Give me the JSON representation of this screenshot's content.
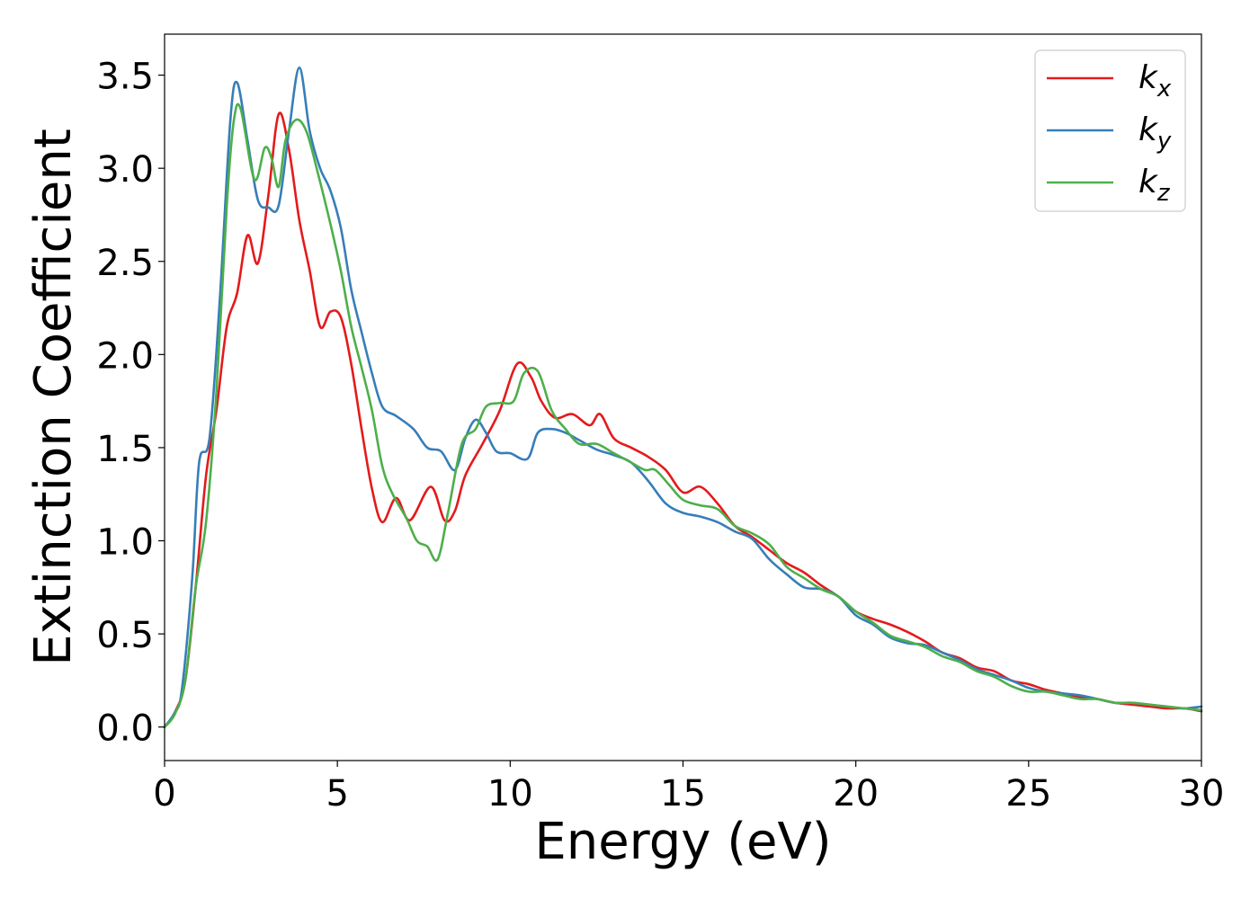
{
  "chart_data": {
    "type": "line",
    "xlabel": "Energy (eV)",
    "ylabel": "Extinction Coefficient",
    "xlim": [
      0,
      30
    ],
    "ylim": [
      -0.18,
      3.72
    ],
    "xticks": [
      0,
      5,
      10,
      15,
      20,
      25,
      30
    ],
    "yticks": [
      0.0,
      0.5,
      1.0,
      1.5,
      2.0,
      2.5,
      3.0,
      3.5
    ],
    "xtick_labels": [
      "0",
      "5",
      "10",
      "15",
      "20",
      "25",
      "30"
    ],
    "ytick_labels": [
      "0.0",
      "0.5",
      "1.0",
      "1.5",
      "2.0",
      "2.5",
      "3.0",
      "3.5"
    ],
    "grid": false,
    "legend_position": "top-right",
    "series": [
      {
        "name": "k_x",
        "label_main": "k",
        "label_sub": "x",
        "color": "#e41a1c",
        "points": [
          [
            0,
            0
          ],
          [
            0.3,
            0.08
          ],
          [
            0.6,
            0.25
          ],
          [
            0.9,
            0.75
          ],
          [
            1.2,
            1.35
          ],
          [
            1.5,
            1.7
          ],
          [
            1.8,
            2.15
          ],
          [
            2.1,
            2.33
          ],
          [
            2.4,
            2.64
          ],
          [
            2.7,
            2.49
          ],
          [
            3.0,
            2.85
          ],
          [
            3.3,
            3.29
          ],
          [
            3.6,
            3.1
          ],
          [
            3.9,
            2.72
          ],
          [
            4.2,
            2.45
          ],
          [
            4.5,
            2.15
          ],
          [
            4.8,
            2.23
          ],
          [
            5.1,
            2.2
          ],
          [
            5.4,
            1.95
          ],
          [
            5.7,
            1.6
          ],
          [
            6.0,
            1.28
          ],
          [
            6.3,
            1.1
          ],
          [
            6.7,
            1.23
          ],
          [
            7.1,
            1.11
          ],
          [
            7.7,
            1.29
          ],
          [
            8.1,
            1.11
          ],
          [
            8.4,
            1.16
          ],
          [
            8.7,
            1.35
          ],
          [
            9.2,
            1.52
          ],
          [
            9.7,
            1.7
          ],
          [
            10.2,
            1.95
          ],
          [
            10.6,
            1.88
          ],
          [
            10.9,
            1.75
          ],
          [
            11.3,
            1.66
          ],
          [
            11.8,
            1.68
          ],
          [
            12.3,
            1.62
          ],
          [
            12.6,
            1.68
          ],
          [
            13.0,
            1.55
          ],
          [
            13.5,
            1.5
          ],
          [
            14.0,
            1.45
          ],
          [
            14.5,
            1.38
          ],
          [
            15.0,
            1.26
          ],
          [
            15.5,
            1.29
          ],
          [
            16.0,
            1.2
          ],
          [
            16.5,
            1.08
          ],
          [
            17.0,
            1.02
          ],
          [
            17.5,
            0.95
          ],
          [
            18.0,
            0.88
          ],
          [
            18.5,
            0.83
          ],
          [
            19.0,
            0.76
          ],
          [
            19.5,
            0.7
          ],
          [
            20.0,
            0.62
          ],
          [
            20.5,
            0.58
          ],
          [
            21.0,
            0.55
          ],
          [
            21.5,
            0.51
          ],
          [
            22.0,
            0.46
          ],
          [
            22.5,
            0.4
          ],
          [
            23.0,
            0.37
          ],
          [
            23.5,
            0.32
          ],
          [
            24.0,
            0.3
          ],
          [
            24.5,
            0.25
          ],
          [
            25.0,
            0.23
          ],
          [
            25.5,
            0.2
          ],
          [
            26.0,
            0.18
          ],
          [
            26.5,
            0.16
          ],
          [
            27.0,
            0.15
          ],
          [
            27.5,
            0.13
          ],
          [
            28.0,
            0.12
          ],
          [
            28.5,
            0.11
          ],
          [
            29.0,
            0.1
          ],
          [
            29.5,
            0.1
          ],
          [
            30.0,
            0.085
          ]
        ]
      },
      {
        "name": "k_y",
        "label_main": "k",
        "label_sub": "y",
        "color": "#377eb8",
        "points": [
          [
            0,
            0
          ],
          [
            0.3,
            0.08
          ],
          [
            0.5,
            0.2
          ],
          [
            0.8,
            0.8
          ],
          [
            1.0,
            1.42
          ],
          [
            1.3,
            1.55
          ],
          [
            1.6,
            2.3
          ],
          [
            1.9,
            3.25
          ],
          [
            2.1,
            3.46
          ],
          [
            2.4,
            3.15
          ],
          [
            2.7,
            2.83
          ],
          [
            3.0,
            2.79
          ],
          [
            3.3,
            2.8
          ],
          [
            3.6,
            3.2
          ],
          [
            3.9,
            3.54
          ],
          [
            4.2,
            3.2
          ],
          [
            4.5,
            3.0
          ],
          [
            4.8,
            2.88
          ],
          [
            5.1,
            2.68
          ],
          [
            5.4,
            2.35
          ],
          [
            5.7,
            2.12
          ],
          [
            6.0,
            1.9
          ],
          [
            6.3,
            1.72
          ],
          [
            6.7,
            1.67
          ],
          [
            7.2,
            1.6
          ],
          [
            7.6,
            1.5
          ],
          [
            8.0,
            1.48
          ],
          [
            8.4,
            1.38
          ],
          [
            8.7,
            1.55
          ],
          [
            9.0,
            1.65
          ],
          [
            9.3,
            1.58
          ],
          [
            9.6,
            1.48
          ],
          [
            10.0,
            1.47
          ],
          [
            10.5,
            1.44
          ],
          [
            10.8,
            1.58
          ],
          [
            11.2,
            1.6
          ],
          [
            11.6,
            1.58
          ],
          [
            12.0,
            1.54
          ],
          [
            12.5,
            1.49
          ],
          [
            13.0,
            1.46
          ],
          [
            13.5,
            1.42
          ],
          [
            14.0,
            1.32
          ],
          [
            14.5,
            1.2
          ],
          [
            15.0,
            1.15
          ],
          [
            15.5,
            1.13
          ],
          [
            16.0,
            1.1
          ],
          [
            16.5,
            1.05
          ],
          [
            17.0,
            1.01
          ],
          [
            17.5,
            0.9
          ],
          [
            18.0,
            0.82
          ],
          [
            18.5,
            0.75
          ],
          [
            19.0,
            0.74
          ],
          [
            19.5,
            0.7
          ],
          [
            20.0,
            0.6
          ],
          [
            20.5,
            0.55
          ],
          [
            21.0,
            0.48
          ],
          [
            21.5,
            0.45
          ],
          [
            22.0,
            0.44
          ],
          [
            22.5,
            0.4
          ],
          [
            23.0,
            0.36
          ],
          [
            23.5,
            0.31
          ],
          [
            24.0,
            0.28
          ],
          [
            24.5,
            0.25
          ],
          [
            25.0,
            0.21
          ],
          [
            25.5,
            0.19
          ],
          [
            26.0,
            0.18
          ],
          [
            26.5,
            0.17
          ],
          [
            27.0,
            0.15
          ],
          [
            27.5,
            0.13
          ],
          [
            28.0,
            0.13
          ],
          [
            28.5,
            0.12
          ],
          [
            29.0,
            0.11
          ],
          [
            29.5,
            0.1
          ],
          [
            30.0,
            0.11
          ]
        ]
      },
      {
        "name": "k_z",
        "label_main": "k",
        "label_sub": "z",
        "color": "#4daf4a",
        "points": [
          [
            0,
            0
          ],
          [
            0.3,
            0.07
          ],
          [
            0.6,
            0.25
          ],
          [
            0.9,
            0.75
          ],
          [
            1.2,
            1.1
          ],
          [
            1.5,
            1.8
          ],
          [
            1.8,
            2.8
          ],
          [
            2.0,
            3.25
          ],
          [
            2.2,
            3.32
          ],
          [
            2.6,
            2.94
          ],
          [
            2.9,
            3.11
          ],
          [
            3.1,
            3.05
          ],
          [
            3.3,
            2.9
          ],
          [
            3.5,
            3.15
          ],
          [
            3.8,
            3.26
          ],
          [
            4.1,
            3.2
          ],
          [
            4.4,
            3.0
          ],
          [
            4.8,
            2.7
          ],
          [
            5.1,
            2.45
          ],
          [
            5.4,
            2.15
          ],
          [
            5.7,
            1.93
          ],
          [
            6.0,
            1.7
          ],
          [
            6.3,
            1.4
          ],
          [
            6.6,
            1.25
          ],
          [
            7.0,
            1.12
          ],
          [
            7.3,
            1.0
          ],
          [
            7.6,
            0.97
          ],
          [
            7.9,
            0.9
          ],
          [
            8.2,
            1.15
          ],
          [
            8.6,
            1.52
          ],
          [
            9.0,
            1.6
          ],
          [
            9.3,
            1.72
          ],
          [
            9.7,
            1.74
          ],
          [
            10.1,
            1.75
          ],
          [
            10.4,
            1.9
          ],
          [
            10.8,
            1.91
          ],
          [
            11.2,
            1.7
          ],
          [
            11.6,
            1.6
          ],
          [
            12.0,
            1.52
          ],
          [
            12.5,
            1.52
          ],
          [
            13.0,
            1.47
          ],
          [
            13.5,
            1.42
          ],
          [
            13.9,
            1.38
          ],
          [
            14.2,
            1.38
          ],
          [
            14.6,
            1.3
          ],
          [
            15.0,
            1.22
          ],
          [
            15.5,
            1.19
          ],
          [
            16.0,
            1.17
          ],
          [
            16.5,
            1.08
          ],
          [
            17.0,
            1.04
          ],
          [
            17.5,
            0.98
          ],
          [
            18.0,
            0.86
          ],
          [
            18.5,
            0.8
          ],
          [
            19.0,
            0.74
          ],
          [
            19.5,
            0.7
          ],
          [
            20.0,
            0.62
          ],
          [
            20.5,
            0.56
          ],
          [
            21.0,
            0.49
          ],
          [
            21.5,
            0.46
          ],
          [
            22.0,
            0.43
          ],
          [
            22.5,
            0.38
          ],
          [
            23.0,
            0.35
          ],
          [
            23.5,
            0.3
          ],
          [
            24.0,
            0.27
          ],
          [
            24.5,
            0.22
          ],
          [
            25.0,
            0.19
          ],
          [
            25.5,
            0.19
          ],
          [
            26.0,
            0.17
          ],
          [
            26.5,
            0.15
          ],
          [
            27.0,
            0.15
          ],
          [
            27.5,
            0.13
          ],
          [
            28.0,
            0.13
          ],
          [
            28.5,
            0.12
          ],
          [
            29.0,
            0.11
          ],
          [
            29.5,
            0.1
          ],
          [
            30.0,
            0.09
          ]
        ]
      }
    ]
  }
}
